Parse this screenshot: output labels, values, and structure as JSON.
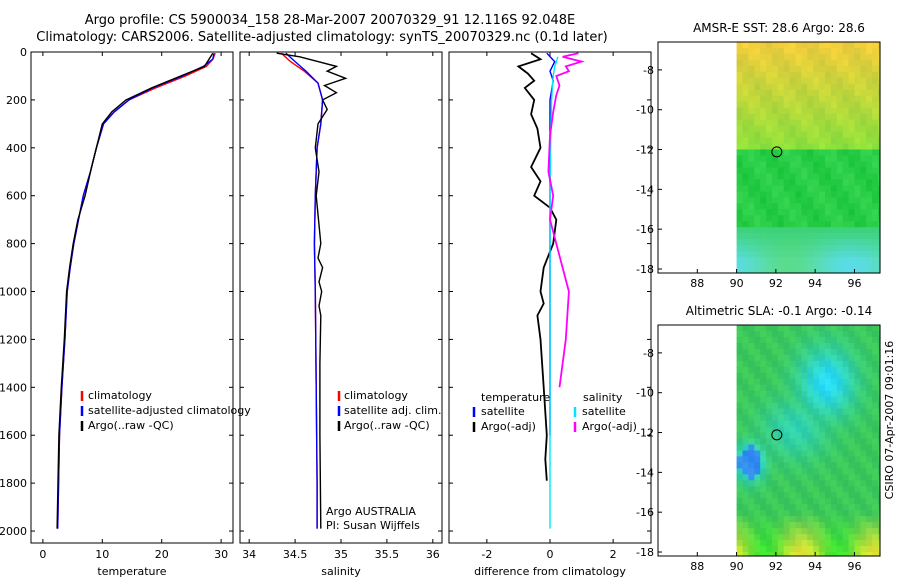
{
  "header": {
    "line1": "Argo profile: CS 5900034_158 28-Mar-2007 20070329_91 12.116S 92.048E",
    "line2": "Climatology: CARS2006. Satellite-adjusted climatology: synTS_20070329.nc (0.1d later)"
  },
  "side_label": "CSIRO 07-Apr-2007 09:01:16",
  "colors": {
    "climatology": "#ff0000",
    "satellite": "#0000ff",
    "argo": "#000000",
    "cyan": "#00e5ff",
    "magenta": "#ff00ff"
  },
  "chart_data": [
    {
      "type": "line",
      "title": "",
      "xlabel": "temperature",
      "ylabel": "",
      "xlim": [
        -2,
        32
      ],
      "ylim": [
        2050,
        0
      ],
      "xticks": [
        0,
        10,
        20,
        30
      ],
      "yticks": [
        0,
        200,
        400,
        600,
        800,
        1000,
        1200,
        1400,
        1600,
        1800,
        2000
      ],
      "legend": [
        "climatology",
        "satellite-adjusted climatology",
        "Argo(..raw -QC)"
      ],
      "series": [
        {
          "name": "climatology",
          "color": "#ff0000",
          "x": [
            29.0,
            28.6,
            27.5,
            24.0,
            19.0,
            14.5,
            12.0,
            10.2,
            9.0,
            8.0,
            6.8,
            6.0,
            5.2,
            4.6,
            4.1,
            3.7,
            3.2,
            2.8,
            2.5
          ],
          "y": [
            5,
            30,
            60,
            100,
            150,
            200,
            250,
            300,
            400,
            500,
            600,
            700,
            800,
            900,
            1000,
            1200,
            1400,
            1600,
            1990
          ]
        },
        {
          "name": "satellite-adjusted climatology",
          "color": "#0000ff",
          "x": [
            28.8,
            28.6,
            27.0,
            23.5,
            18.5,
            14.5,
            12.0,
            10.2,
            9.0,
            8.0,
            6.8,
            6.0,
            5.2,
            4.6,
            4.1,
            3.7,
            3.2,
            2.8,
            2.5
          ],
          "y": [
            5,
            30,
            60,
            100,
            150,
            200,
            250,
            300,
            400,
            500,
            600,
            700,
            800,
            900,
            1000,
            1200,
            1400,
            1600,
            1990
          ]
        },
        {
          "name": "Argo(..raw -QC)",
          "color": "#000000",
          "x": [
            28.6,
            27.2,
            23.2,
            18.3,
            14.0,
            11.6,
            10.0,
            9.0,
            8.2,
            7.1,
            5.9,
            5.1,
            4.5,
            4.0,
            3.6,
            3.1,
            2.7,
            2.4
          ],
          "y": [
            5,
            60,
            100,
            150,
            200,
            250,
            300,
            400,
            480,
            600,
            700,
            800,
            900,
            1000,
            1200,
            1400,
            1600,
            1990
          ]
        }
      ]
    },
    {
      "type": "line",
      "title": "",
      "xlabel": "salinity",
      "ylabel": "",
      "xlim": [
        33.9,
        36.1
      ],
      "ylim": [
        2050,
        0
      ],
      "xticks": [
        34,
        34.5,
        35,
        35.5,
        36
      ],
      "xtick_labels": [
        "34",
        "34.5",
        "35",
        "35.5",
        "36"
      ],
      "legend": [
        "climatology",
        "satellite adj. clim.",
        "Argo(..raw -QC)"
      ],
      "annotation": [
        "Argo AUSTRALIA",
        "PI: Susan Wijffels"
      ],
      "series": [
        {
          "name": "climatology",
          "color": "#ff0000",
          "x": [
            34.35,
            34.45,
            34.6,
            34.75,
            34.8,
            34.78,
            34.74,
            34.72,
            34.71,
            34.72,
            34.73,
            34.74,
            34.74
          ],
          "y": [
            5,
            40,
            80,
            130,
            200,
            300,
            400,
            600,
            800,
            1000,
            1400,
            1800,
            1990
          ]
        },
        {
          "name": "satellite adj. clim.",
          "color": "#0000ff",
          "x": [
            34.4,
            34.5,
            34.62,
            34.75,
            34.8,
            34.78,
            34.74,
            34.72,
            34.71,
            34.72,
            34.73,
            34.74,
            34.74
          ],
          "y": [
            5,
            40,
            80,
            130,
            200,
            300,
            400,
            600,
            800,
            1000,
            1400,
            1800,
            1990
          ]
        },
        {
          "name": "Argo(..raw -QC)",
          "color": "#000000",
          "x": [
            34.3,
            34.55,
            34.75,
            34.95,
            34.85,
            35.05,
            34.82,
            34.95,
            34.8,
            34.85,
            34.75,
            34.72,
            34.76,
            34.73,
            34.78,
            34.75,
            34.8,
            34.76,
            34.79,
            34.76,
            34.78,
            34.77,
            34.77,
            34.78
          ],
          "y": [
            5,
            20,
            40,
            60,
            80,
            110,
            140,
            170,
            200,
            240,
            300,
            400,
            500,
            600,
            800,
            860,
            900,
            960,
            1000,
            1060,
            1100,
            1300,
            1600,
            1990
          ]
        }
      ]
    },
    {
      "type": "line",
      "title": "",
      "xlabel": "difference from climatology",
      "ylabel": "",
      "xlim": [
        -3.2,
        3.2
      ],
      "ylim": [
        2050,
        0
      ],
      "xticks": [
        -2,
        0,
        2
      ],
      "legend_left": {
        "heading": "temperature",
        "items": [
          "satellite",
          "Argo(-adj)"
        ]
      },
      "legend_right": {
        "heading": "salinity",
        "items": [
          "satellite",
          "Argo(-adj)"
        ]
      },
      "series": [
        {
          "name": "temperature satellite",
          "color": "#0000ff",
          "x": [
            -0.1,
            0.15,
            0.0,
            0.1,
            0.0,
            0.0,
            0.0,
            0.0,
            0.0
          ],
          "y": [
            5,
            40,
            80,
            120,
            200,
            400,
            800,
            1200,
            1600
          ]
        },
        {
          "name": "temperature Argo(-adj)",
          "color": "#000000",
          "x": [
            -0.6,
            -0.3,
            -1.0,
            -0.7,
            -0.5,
            -0.8,
            -0.5,
            -0.6,
            -0.4,
            -0.3,
            -0.6,
            -0.3,
            -0.5,
            0.0,
            0.2,
            0.1,
            -0.2,
            -0.3,
            -0.2,
            -0.4,
            -0.3,
            -0.2,
            -0.1,
            -0.15,
            -0.1
          ],
          "y": [
            5,
            30,
            60,
            90,
            120,
            150,
            200,
            260,
            320,
            400,
            480,
            540,
            600,
            650,
            700,
            800,
            900,
            1000,
            1050,
            1100,
            1200,
            1400,
            1600,
            1700,
            1790
          ]
        },
        {
          "name": "salinity satellite",
          "color": "#00e5ff",
          "x": [
            0.25,
            0.15,
            0.1,
            0.05,
            0.03,
            0.0,
            0.0,
            0.0,
            0.0,
            0.0,
            0.0
          ],
          "y": [
            20,
            60,
            100,
            200,
            300,
            600,
            900,
            1200,
            1600,
            1900,
            1990
          ]
        },
        {
          "name": "salinity Argo(-adj)",
          "color": "#ff00ff",
          "x": [
            0.9,
            0.4,
            1.0,
            0.5,
            0.6,
            0.2,
            0.3,
            0.2,
            0.1,
            0.0,
            -0.05,
            0.1,
            0.0,
            0.2,
            0.4,
            0.6,
            0.5,
            0.3
          ],
          "y": [
            5,
            20,
            40,
            60,
            80,
            100,
            140,
            180,
            250,
            350,
            500,
            600,
            700,
            800,
            900,
            1000,
            1200,
            1400
          ]
        }
      ]
    },
    {
      "type": "heatmap",
      "title": "AMSR-E SST: 28.6  Argo: 28.6",
      "xlim": [
        86,
        97.3
      ],
      "ylim": [
        -18.2,
        -6.6
      ],
      "xticks": [
        88,
        90,
        92,
        94,
        96
      ],
      "yticks": [
        -8,
        -10,
        -12,
        -14,
        -16,
        -18
      ],
      "data_xmin": 90,
      "marker": {
        "lon": 92.048,
        "lat": -12.116
      }
    },
    {
      "type": "heatmap",
      "title": "Altimetric SLA: -0.1  Argo: -0.14",
      "xlim": [
        86,
        97.3
      ],
      "ylim": [
        -18.2,
        -6.6
      ],
      "xticks": [
        88,
        90,
        92,
        94,
        96
      ],
      "yticks": [
        -8,
        -10,
        -12,
        -14,
        -16,
        -18
      ],
      "data_xmin": 90,
      "marker": {
        "lon": 92.048,
        "lat": -12.116
      }
    }
  ]
}
